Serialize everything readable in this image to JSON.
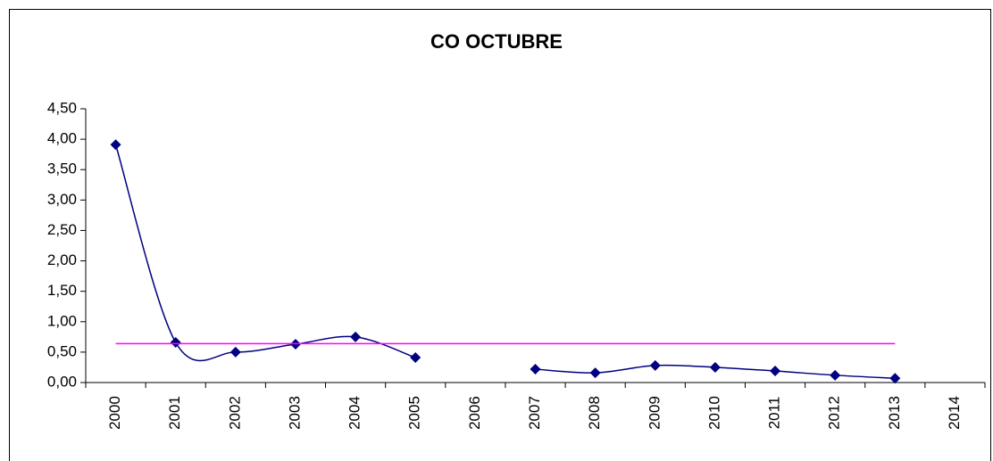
{
  "chart_data": {
    "type": "line",
    "title": "CO OCTUBRE",
    "categories": [
      "2000",
      "2001",
      "2002",
      "2003",
      "2004",
      "2005",
      "2006",
      "2007",
      "2008",
      "2009",
      "2010",
      "2011",
      "2012",
      "2013",
      "2014"
    ],
    "series": [
      {
        "color": "#000080",
        "smooth": true,
        "marker": "diamond",
        "values": [
          3.91,
          0.66,
          0.5,
          0.63,
          0.75,
          0.41,
          null,
          0.22,
          0.16,
          0.28,
          0.25,
          0.19,
          0.12,
          0.07,
          null
        ]
      },
      {
        "color": "#ff00ff",
        "smooth": false,
        "marker": "none",
        "values": [
          0.64,
          0.64,
          0.64,
          0.64,
          0.64,
          0.64,
          0.64,
          0.64,
          0.64,
          0.64,
          0.64,
          0.64,
          0.64,
          0.64,
          null
        ]
      }
    ],
    "ylim": [
      0,
      4.5
    ],
    "yticks": [
      {
        "value": 0,
        "label": "0,00"
      },
      {
        "value": 0.5,
        "label": "0,50"
      },
      {
        "value": 1,
        "label": "1,00"
      },
      {
        "value": 1.5,
        "label": "1,50"
      },
      {
        "value": 2,
        "label": "2,00"
      },
      {
        "value": 2.5,
        "label": "2,50"
      },
      {
        "value": 3,
        "label": "3,00"
      },
      {
        "value": 3.5,
        "label": "3,50"
      },
      {
        "value": 4,
        "label": "4,00"
      },
      {
        "value": 4.5,
        "label": "4,50"
      }
    ],
    "grid": false
  }
}
